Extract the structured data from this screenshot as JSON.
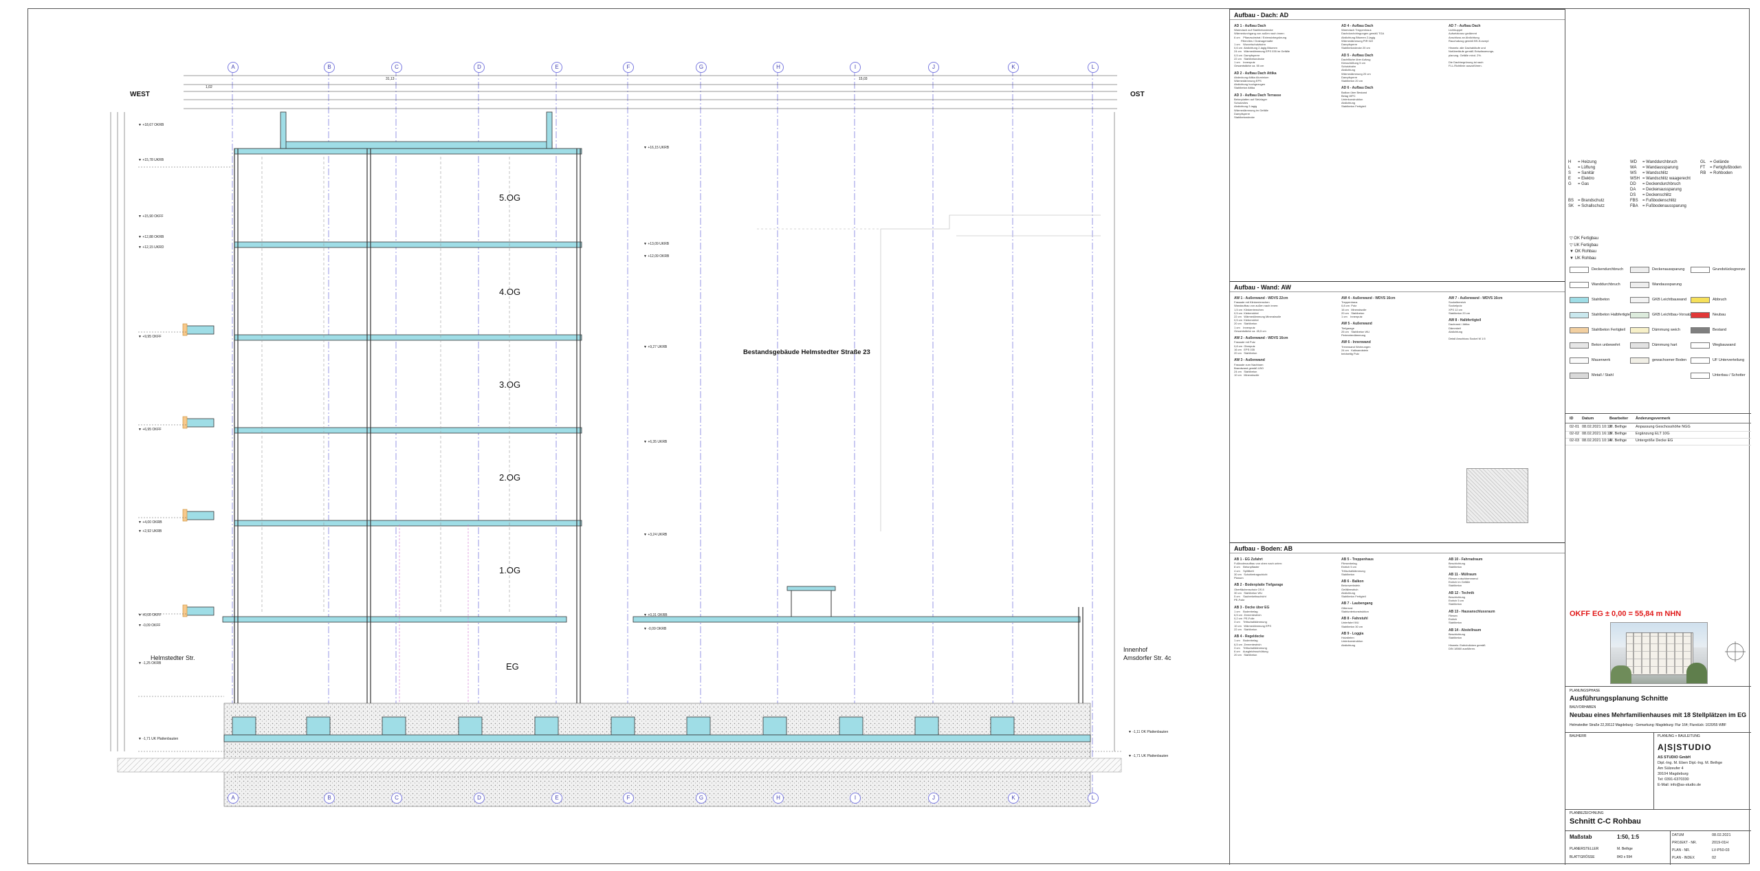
{
  "drawing": {
    "axes": [
      "A",
      "B",
      "C",
      "D",
      "E",
      "F",
      "G",
      "H",
      "I",
      "J",
      "K",
      "L"
    ],
    "side_left": "WEST",
    "side_right": "OST",
    "floors": [
      "5.OG",
      "4.OG",
      "3.OG",
      "2.OG",
      "1.OG",
      "EG"
    ],
    "neighbour_building": "Bestandsgebäude Helmstedter Straße 23",
    "street_left": "Helmstedter Str.",
    "court_right_1": "Innenhof",
    "court_right_2": "Amsdorfer Str. 4c",
    "levels_left": [
      "+18,67 OKRB",
      "+15,78 UKRB",
      "+15,90 OKFF",
      "+12,88 OKRB",
      "+12,15 UKRD",
      "+9,95 OKFF",
      "+6,95 OKFF",
      "+4,00 OKRB",
      "+2,92 UKRB",
      "±0,00 OKFF",
      "-0,09 OKFF",
      "-1,25 OKRB",
      "-1,71 UK Plattenbauten"
    ],
    "levels_right": [
      "+16,15 UKRB",
      "+13,09 UKRB",
      "+12,09 OKRB",
      "+9,27 UKRB",
      "+6,35 UKRB",
      "+3,24 UKRB",
      "+0,31 OKRB",
      "-0,09 OKRB",
      "-1,11 OK Plattenbauten",
      "-1,71 UK Plattenbauten"
    ],
    "dims_top": [
      "31,13",
      "1,02",
      "15,03"
    ]
  },
  "legend": {
    "sec_roof": "Aufbau - Dach: AD",
    "sec_wall": "Aufbau - Wand: AW",
    "sec_floor": "Aufbau - Boden: AB",
    "abbrev": [
      [
        "H",
        "= Heizung",
        "WD",
        "= Wanddurchbruch",
        "GL",
        "= Gelände"
      ],
      [
        "L",
        "= Lüftung",
        "WA",
        "= Wandaussparung",
        "FT",
        "= Fertigfußboden"
      ],
      [
        "S",
        "= Sanitär",
        "WS",
        "= Wandschlitz",
        "RB",
        "= Rohboden"
      ],
      [
        "E",
        "= Elektro",
        "WSH",
        "= Wandschlitz waagerecht",
        "",
        ""
      ],
      [
        "G",
        "= Gas",
        "DD",
        "= Deckendurchbruch",
        "",
        ""
      ],
      [
        "",
        "",
        "DA",
        "= Deckenaussparung",
        "",
        ""
      ],
      [
        "",
        "",
        "DS",
        "= Deckenschlitz",
        "",
        ""
      ],
      [
        "BS",
        "= Brandschutz",
        "FBS",
        "= Fußbodenschlitz",
        "",
        ""
      ],
      [
        "SK",
        "= Schallschutz",
        "FBA",
        "= Fußbodenaussparung",
        "",
        ""
      ]
    ],
    "symbols": [
      "▽ OK Fertigbau",
      "▽ UK Fertigbau",
      "▼ OK Rohbau",
      "▼ UK Rohbau"
    ],
    "hatch": [
      [
        "Deckendurchbruch",
        "Deckenaussparung",
        "Grundstücksgrenze"
      ],
      [
        "Wanddurchbruch",
        "Wandaussparung",
        ""
      ],
      [
        "Stahlbeton",
        "GKB Leichtbauwand",
        "Abbruch"
      ],
      [
        "Stahlbeton Halbfertigteil",
        "GKB Leichtbau-Vorsatz",
        "Neubau"
      ],
      [
        "Stahlbeton Fertigteil",
        "Dämmung weich",
        "Bestand"
      ],
      [
        "Beton unbewehrt",
        "Dämmung hart",
        "Wegbauwand"
      ],
      [
        "Mauerwerk",
        "gewachsener Boden",
        "UF Unterverteilung"
      ],
      [
        "Metall / Stahl",
        "",
        "Unterbau / Schotter"
      ]
    ],
    "rev_head": [
      "ID",
      "Datum",
      "Bearbeiter",
      "Änderungsvermerk"
    ],
    "revisions": [
      [
        "02-01",
        "08.02.2021 10:12",
        "M. Bethge",
        "Anpassung Geschosshöhe NGG"
      ],
      [
        "02-02",
        "08.02.2021 16:13",
        "M. Bethge",
        "Ergänzung ELT 10G"
      ],
      [
        "02-03",
        "08.02.2021 10:14",
        "M. Bethge",
        "Untergröße Decke EG"
      ]
    ]
  },
  "title": {
    "okff": "OKFF EG ± 0,00 = 55,84 m NHN",
    "phase_label": "PLANUNGSPHASE",
    "phase": "Ausführungsplanung Schnitte",
    "project_label": "BAUVORHABEN",
    "project": "Neubau eines Mehrfamilienhauses mit 18 Stellplätzen im EG",
    "address": "Helmstedter Straße 22,39112 Magdeburg - Gemarkung: Magdeburg: Flur 164; Flurstück: 1020/55 WBF",
    "owner_label": "BAUHERR",
    "planning_label": "PLANUNG + BAULEITUNG",
    "office_logo": "A|S|STUDIO",
    "office_lines": [
      "AS STUDIO GmbH",
      "Dipl.-Ing. M. Eben  Dipl.-Ing. M. Bethge",
      "Am Sülzeufer 4",
      "39104 Magdeburg",
      "Tel: 0391-6370330",
      "E-Mail: info@as-studio.de"
    ],
    "plan_label": "PLANBEZEICHNUNG",
    "plan": "Schnitt C-C Rohbau",
    "scale_label": "Maßstab",
    "scale": "1:50, 1:5",
    "meta": [
      [
        "DATUM",
        "08.02.2021"
      ],
      [
        "PROJEKT - NR.",
        "2019-01H"
      ],
      [
        "PLAN - NR.",
        "LV-P50-03"
      ],
      [
        "PLAN - INDEX",
        "02"
      ]
    ],
    "author_label": "PLANERSTELLER",
    "author": "M. Bethge",
    "size_label": "BLATTGRÖSSE",
    "size": "843 x 594"
  }
}
